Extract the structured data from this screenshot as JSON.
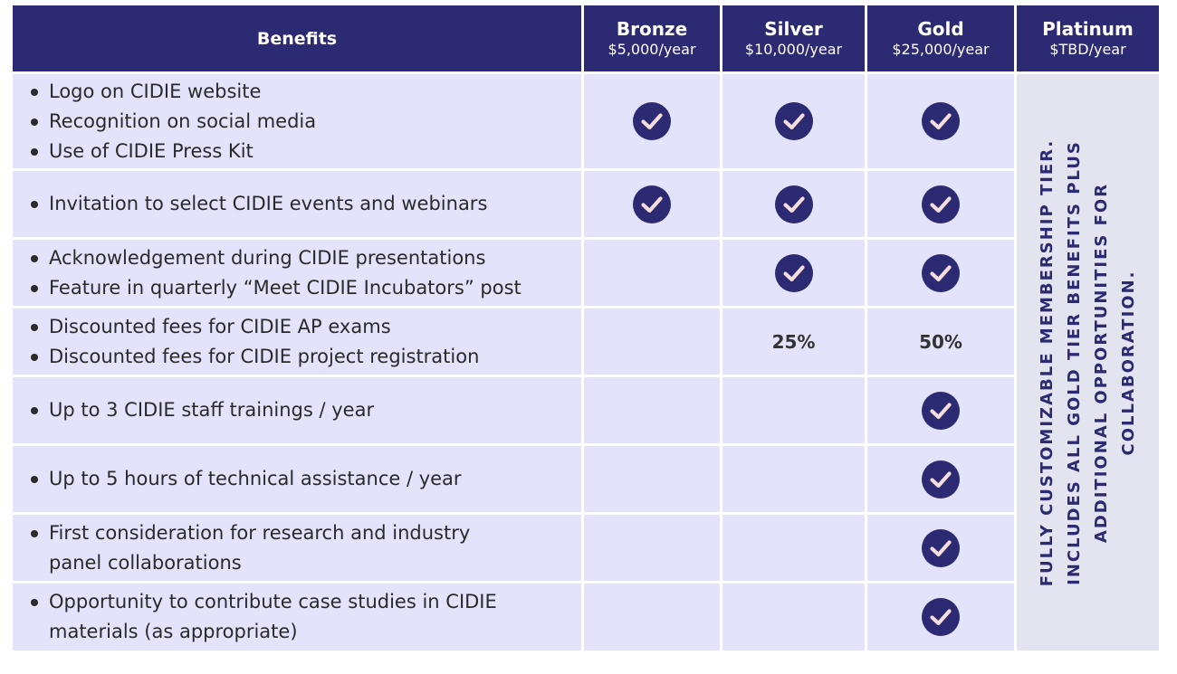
{
  "colors": {
    "header_bg": "#2b2a72",
    "cell_bg": "#e3e3fb",
    "platinum_bg": "#e4e4f1",
    "check_fill": "#2b2a72",
    "check_stroke": "#f7dede"
  },
  "header": {
    "benefits": "Benefits",
    "tiers": [
      {
        "name": "Bronze",
        "price": "$5,000/year"
      },
      {
        "name": "Silver",
        "price": "$10,000/year"
      },
      {
        "name": "Gold",
        "price": "$25,000/year"
      },
      {
        "name": "Platinum",
        "price": "$TBD/year"
      }
    ]
  },
  "rows": [
    {
      "benefits": [
        "Logo on CIDIE website",
        "Recognition on social media",
        "Use of CIDIE Press Kit"
      ],
      "bronze": "check-icon",
      "silver": "check-icon",
      "gold": "check-icon"
    },
    {
      "benefits": [
        "Invitation to select CIDIE events and webinars"
      ],
      "bronze": "check-icon",
      "silver": "check-icon",
      "gold": "check-icon"
    },
    {
      "benefits": [
        "Acknowledgement during CIDIE presentations",
        "Feature in quarterly “Meet CIDIE Incubators” post"
      ],
      "silver": "check-icon",
      "gold": "check-icon"
    },
    {
      "benefits": [
        "Discounted fees for CIDIE AP exams",
        "Discounted fees for CIDIE project registration"
      ],
      "silver_text": "25%",
      "gold_text": "50%"
    },
    {
      "benefits": [
        "Up to 3 CIDIE staff trainings / year"
      ],
      "gold": "check-icon"
    },
    {
      "benefits": [
        "Up to 5 hours of technical assistance / year"
      ],
      "gold": "check-icon"
    },
    {
      "benefits": [
        "First consideration for research and industry",
        "panel collaborations"
      ],
      "gold": "check-icon"
    },
    {
      "benefits": [
        "Opportunity to contribute case studies in CIDIE",
        "materials (as appropriate)"
      ],
      "gold": "check-icon"
    }
  ],
  "platinum_note": {
    "line1": "FULLY CUSTOMIZABLE MEMBERSHIP TIER.",
    "line2": "INCLUDES ALL GOLD TIER BENEFITS PLUS",
    "line3": "ADDITIONAL OPPORTUNITIES FOR",
    "line4": "COLLABORATION."
  }
}
